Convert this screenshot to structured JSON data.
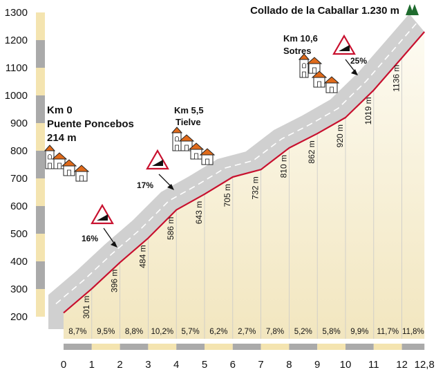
{
  "chart_data": {
    "type": "line",
    "title": "Collado de la Caballar 1.230 m",
    "x": [
      0,
      1,
      2,
      3,
      4,
      5,
      6,
      7,
      8,
      9,
      10,
      11,
      12,
      12.8
    ],
    "y": [
      214,
      301,
      396,
      484,
      586,
      643,
      705,
      732,
      810,
      862,
      920,
      1019,
      1136,
      1230
    ],
    "altitude_labels": [
      "301 m",
      "396 m",
      "484 m",
      "586 m",
      "643 m",
      "705 m",
      "732 m",
      "810 m",
      "862 m",
      "920 m",
      "1019 m",
      "1136 m"
    ],
    "segment_grades": [
      "8,7%",
      "9,5%",
      "8,8%",
      "10,2%",
      "5,7%",
      "6,2%",
      "2,7%",
      "7,8%",
      "5,2%",
      "5,8%",
      "9,9%",
      "11,7%",
      "11,8%"
    ],
    "x_ticks": [
      "0",
      "1",
      "2",
      "3",
      "4",
      "5",
      "6",
      "7",
      "8",
      "9",
      "10",
      "11",
      "12",
      "12,8"
    ],
    "y_ticks": [
      "200",
      "300",
      "400",
      "500",
      "600",
      "700",
      "800",
      "900",
      "1000",
      "1100",
      "1200",
      "1300"
    ],
    "ylim": [
      200,
      1300
    ],
    "xlim": [
      0,
      12.8
    ],
    "annotations": {
      "start": {
        "km": "Km 0",
        "name": "Puente Poncebos",
        "alt": "214 m"
      },
      "tielve": {
        "km": "Km 5,5",
        "name": "Tielve"
      },
      "sotres": {
        "km": "Km 10,6",
        "name": "Sotres"
      },
      "grade_signs": [
        {
          "label": "16%",
          "x": 1.5
        },
        {
          "label": "17%",
          "x": 3.6
        },
        {
          "label": "25%",
          "x": 10.6
        }
      ]
    },
    "colors": {
      "profile_line": "#c8102e",
      "road_band": "#d0d0d0",
      "road_center": "#ffffff",
      "fill_top": "#fdfbf2",
      "fill_bottom": "#f2e6bf",
      "axis_gray": "#aaaaaa",
      "axis_cream": "#f4e4b0",
      "roof": "#e06a1a",
      "peak": "#1f6b2e"
    }
  }
}
